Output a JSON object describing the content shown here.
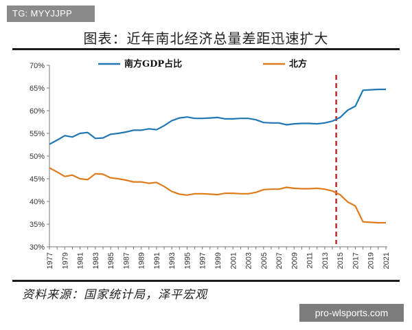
{
  "watermark_top": "TG: MYYJJPP",
  "watermark_bottom": "pro-wlsports.com",
  "title": "图表：近年南北经济总量差距迅速扩大",
  "source": "资料来源：国家统计局，泽平宏观",
  "colors": {
    "south": "#1f77b4",
    "north": "#e07b1a",
    "marker": "#c0282a"
  },
  "chart_data": {
    "type": "line",
    "x": [
      1977,
      1978,
      1979,
      1980,
      1981,
      1982,
      1983,
      1984,
      1985,
      1986,
      1987,
      1988,
      1989,
      1990,
      1991,
      1992,
      1993,
      1994,
      1995,
      1996,
      1997,
      1998,
      1999,
      2000,
      2001,
      2002,
      2003,
      2004,
      2005,
      2006,
      2007,
      2008,
      2009,
      2010,
      2011,
      2012,
      2013,
      2014,
      2015,
      2016,
      2017,
      2018,
      2019,
      2020,
      2021
    ],
    "xticks": [
      "1977",
      "1979",
      "1981",
      "1983",
      "1985",
      "1987",
      "1989",
      "1991",
      "1993",
      "1995",
      "1997",
      "1999",
      "2001",
      "2003",
      "2005",
      "2007",
      "2009",
      "2011",
      "2013",
      "2015",
      "2017",
      "2019",
      "2021"
    ],
    "ylim": [
      30,
      70
    ],
    "yticks": [
      "30%",
      "35%",
      "40%",
      "45%",
      "50%",
      "55%",
      "60%",
      "65%",
      "70%"
    ],
    "series": [
      {
        "name": "南方GDP占比",
        "color": "#1f77b4",
        "values": [
          52.6,
          53.5,
          54.5,
          54.2,
          55.0,
          55.2,
          53.9,
          54.0,
          54.8,
          55.0,
          55.3,
          55.7,
          55.7,
          56.0,
          55.8,
          56.7,
          57.8,
          58.4,
          58.6,
          58.3,
          58.3,
          58.4,
          58.5,
          58.2,
          58.2,
          58.3,
          58.3,
          58.0,
          57.4,
          57.3,
          57.3,
          56.9,
          57.1,
          57.2,
          57.2,
          57.1,
          57.3,
          57.7,
          58.5,
          60.1,
          61.0,
          64.5,
          64.6,
          64.7,
          64.7
        ]
      },
      {
        "name": "北方",
        "color": "#e07b1a",
        "values": [
          47.4,
          46.5,
          45.5,
          45.8,
          45.0,
          44.8,
          46.1,
          46.0,
          45.2,
          45.0,
          44.7,
          44.3,
          44.3,
          44.0,
          44.2,
          43.3,
          42.2,
          41.6,
          41.4,
          41.7,
          41.7,
          41.6,
          41.5,
          41.8,
          41.8,
          41.7,
          41.7,
          42.0,
          42.6,
          42.7,
          42.7,
          43.1,
          42.9,
          42.8,
          42.8,
          42.9,
          42.7,
          42.3,
          41.5,
          39.9,
          39.0,
          35.5,
          35.4,
          35.3,
          35.3
        ]
      }
    ],
    "reference_line": {
      "x": 2014.5,
      "style": "dashed"
    },
    "grid": false,
    "legend": "top"
  }
}
